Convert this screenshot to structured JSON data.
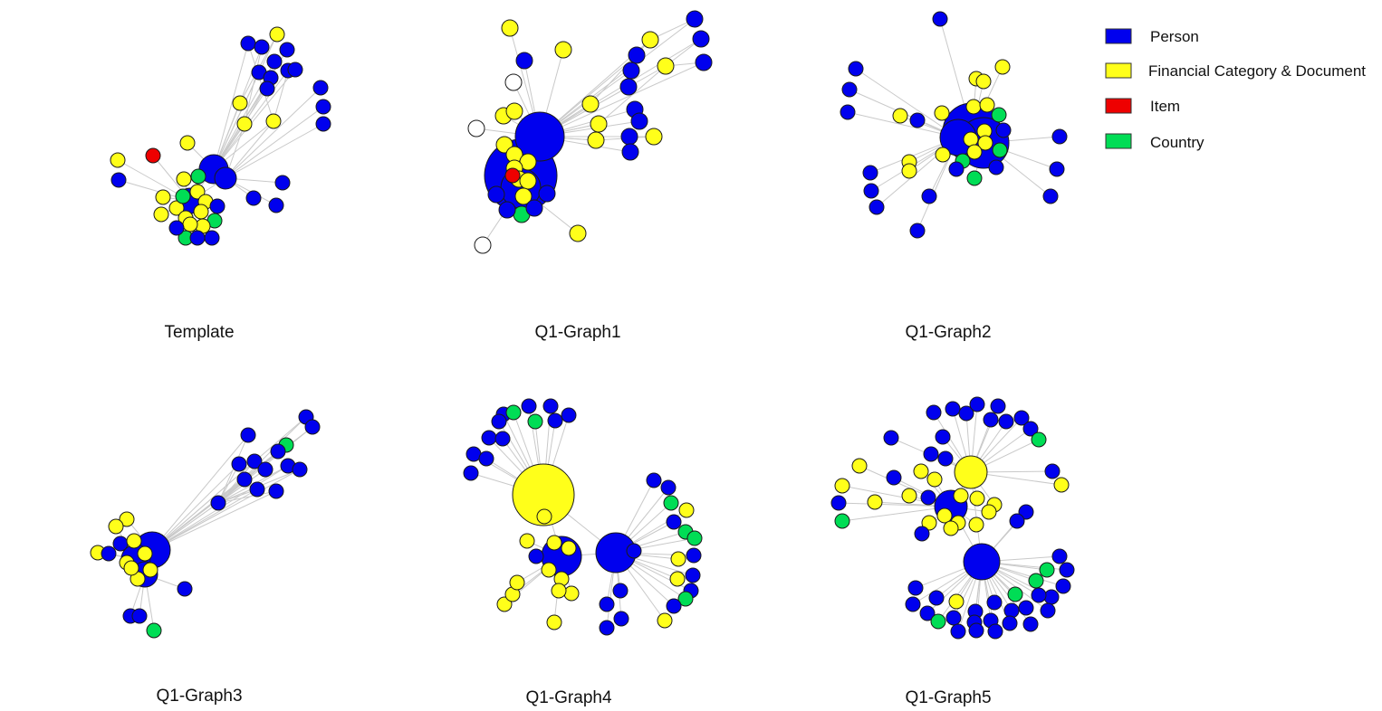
{
  "colors": {
    "person": "#0000ee",
    "financial": "#ffff1a",
    "item": "#ee0000",
    "country": "#00dd55",
    "unknown": "#ffffff"
  },
  "legend": [
    {
      "label": "Person",
      "color": "#0000ee"
    },
    {
      "label": "Financial Category & Document",
      "color": "#ffff1a"
    },
    {
      "label": "Item",
      "color": "#ee0000"
    },
    {
      "label": "Country",
      "color": "#00dd55"
    }
  ],
  "graphs": [
    {
      "caption": "Template"
    },
    {
      "caption": "Q1-Graph1"
    },
    {
      "caption": "Q1-Graph2"
    },
    {
      "caption": "Q1-Graph3"
    },
    {
      "caption": "Q1-Graph4"
    },
    {
      "caption": "Q1-Graph5"
    }
  ]
}
